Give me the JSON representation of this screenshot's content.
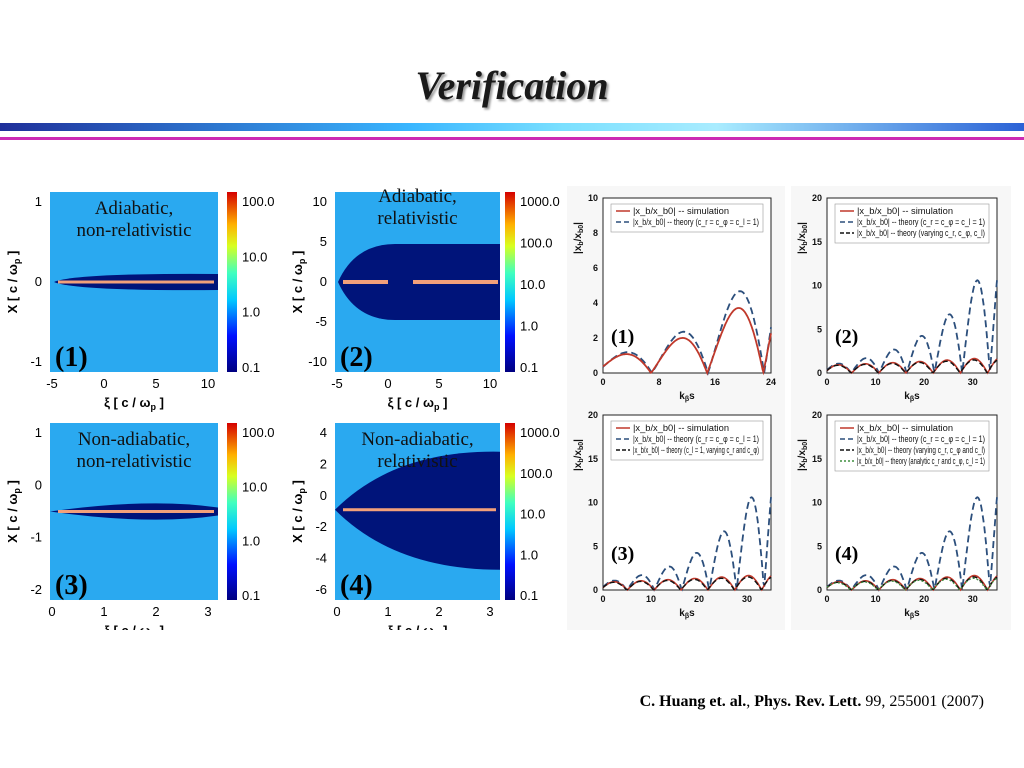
{
  "slide": {
    "title": "Verification",
    "citation": {
      "authors": "C. Huang et. al.",
      "journal": "Phys. Rev. Lett.",
      "rest": " 99, 255001 (2007)"
    }
  },
  "maps": [
    {
      "label": "(1)",
      "caption": [
        "Adiabatic,",
        "non-relativistic"
      ],
      "yaxis": "X [ c / ω",
      "xaxis": "ξ [ c / ω",
      "yticks": [
        "1",
        "0",
        "-1"
      ],
      "xticks": [
        "-5",
        "0",
        "5",
        "10"
      ],
      "cticks": [
        "100.0",
        "10.0",
        "1.0",
        "0.1"
      ]
    },
    {
      "label": "(2)",
      "caption": [
        "Adiabatic,",
        "relativistic"
      ],
      "yaxis": "X [ c / ω",
      "xaxis": "ξ [ c / ω",
      "yticks": [
        "10",
        "5",
        "0",
        "-5",
        "-10"
      ],
      "xticks": [
        "-5",
        "0",
        "5",
        "10"
      ],
      "cticks": [
        "1000.0",
        "100.0",
        "10.0",
        "1.0",
        "0.1"
      ]
    },
    {
      "label": "(3)",
      "caption": [
        "Non-adiabatic,",
        "non-relativistic"
      ],
      "yaxis": "X [ c / ω",
      "xaxis": "ξ [ c / ω",
      "yticks": [
        "1",
        "0",
        "-1",
        "-2"
      ],
      "xticks": [
        "0",
        "1",
        "2",
        "3"
      ],
      "cticks": [
        "100.0",
        "10.0",
        "1.0",
        "0.1"
      ]
    },
    {
      "label": "(4)",
      "caption": [
        "Non-adiabatic,",
        "relativistic"
      ],
      "yaxis": "X [ c / ω",
      "xaxis": "ξ [ c / ω",
      "yticks": [
        "4",
        "2",
        "0",
        "-2",
        "-4",
        "-6"
      ],
      "xticks": [
        "0",
        "1",
        "2",
        "3"
      ],
      "cticks": [
        "1000.0",
        "100.0",
        "10.0",
        "1.0",
        "0.1"
      ]
    }
  ],
  "axis_sub": "p",
  "line_plots": [
    {
      "label": "(1)",
      "ylabel": "|x",
      "xlabel": "k",
      "xmax": 24,
      "ymax": 10,
      "xticks": [
        "0",
        "8",
        "16",
        "24"
      ],
      "yticks": [
        "10",
        "8",
        "6",
        "4",
        "2",
        "0"
      ],
      "legend": [
        "|x_b/x_b0| -- simulation",
        "|x_b/x_b0| -- theory (c_r = c_φ = c_l = 1)"
      ]
    },
    {
      "label": "(2)",
      "ylabel": "|x",
      "xlabel": "k",
      "xmax": 35,
      "ymax": 20,
      "xticks": [
        "0",
        "10",
        "20",
        "30"
      ],
      "yticks": [
        "20",
        "15",
        "10",
        "5",
        "0"
      ],
      "legend": [
        "|x_b/x_b0| -- simulation",
        "|x_b/x_b0| -- theory (c_r = c_φ = c_l = 1)",
        "|x_b/x_b0| -- theory (varying c_r, c_φ, c_l)"
      ]
    },
    {
      "label": "(3)",
      "ylabel": "|x",
      "xlabel": "k",
      "xmax": 35,
      "ymax": 20,
      "xticks": [
        "0",
        "10",
        "20",
        "30"
      ],
      "yticks": [
        "20",
        "15",
        "10",
        "5",
        "0"
      ],
      "legend": [
        "|x_b/x_b0| -- simulation",
        "|x_b/x_b0| -- theory (c_r = c_φ = c_l = 1)",
        "|x_b/x_b0| -- theory (c_l = 1, varying c_r and c_φ)"
      ]
    },
    {
      "label": "(4)",
      "ylabel": "|x",
      "xlabel": "k",
      "xmax": 35,
      "ymax": 20,
      "xticks": [
        "0",
        "10",
        "20",
        "30"
      ],
      "yticks": [
        "20",
        "15",
        "10",
        "5",
        "0"
      ],
      "legend": [
        "|x_b/x_b0| -- simulation",
        "|x_b/x_b0| -- theory (c_r = c_φ = c_l = 1)",
        "|x_b/x_b0| -- theory (varying c_r, c_φ and c_l)",
        "|x_b/x_b0| -- theory (analytic c_r and c_φ, c_l = 1)"
      ]
    }
  ],
  "colors": {
    "map_bg": "#2aa9f0",
    "channel": "#00147a",
    "beam": "#f2a07a",
    "sim": "#c0392b",
    "theory": "#2c4f7c",
    "varying": "#111111",
    "analytic": "#3f8f3f"
  }
}
